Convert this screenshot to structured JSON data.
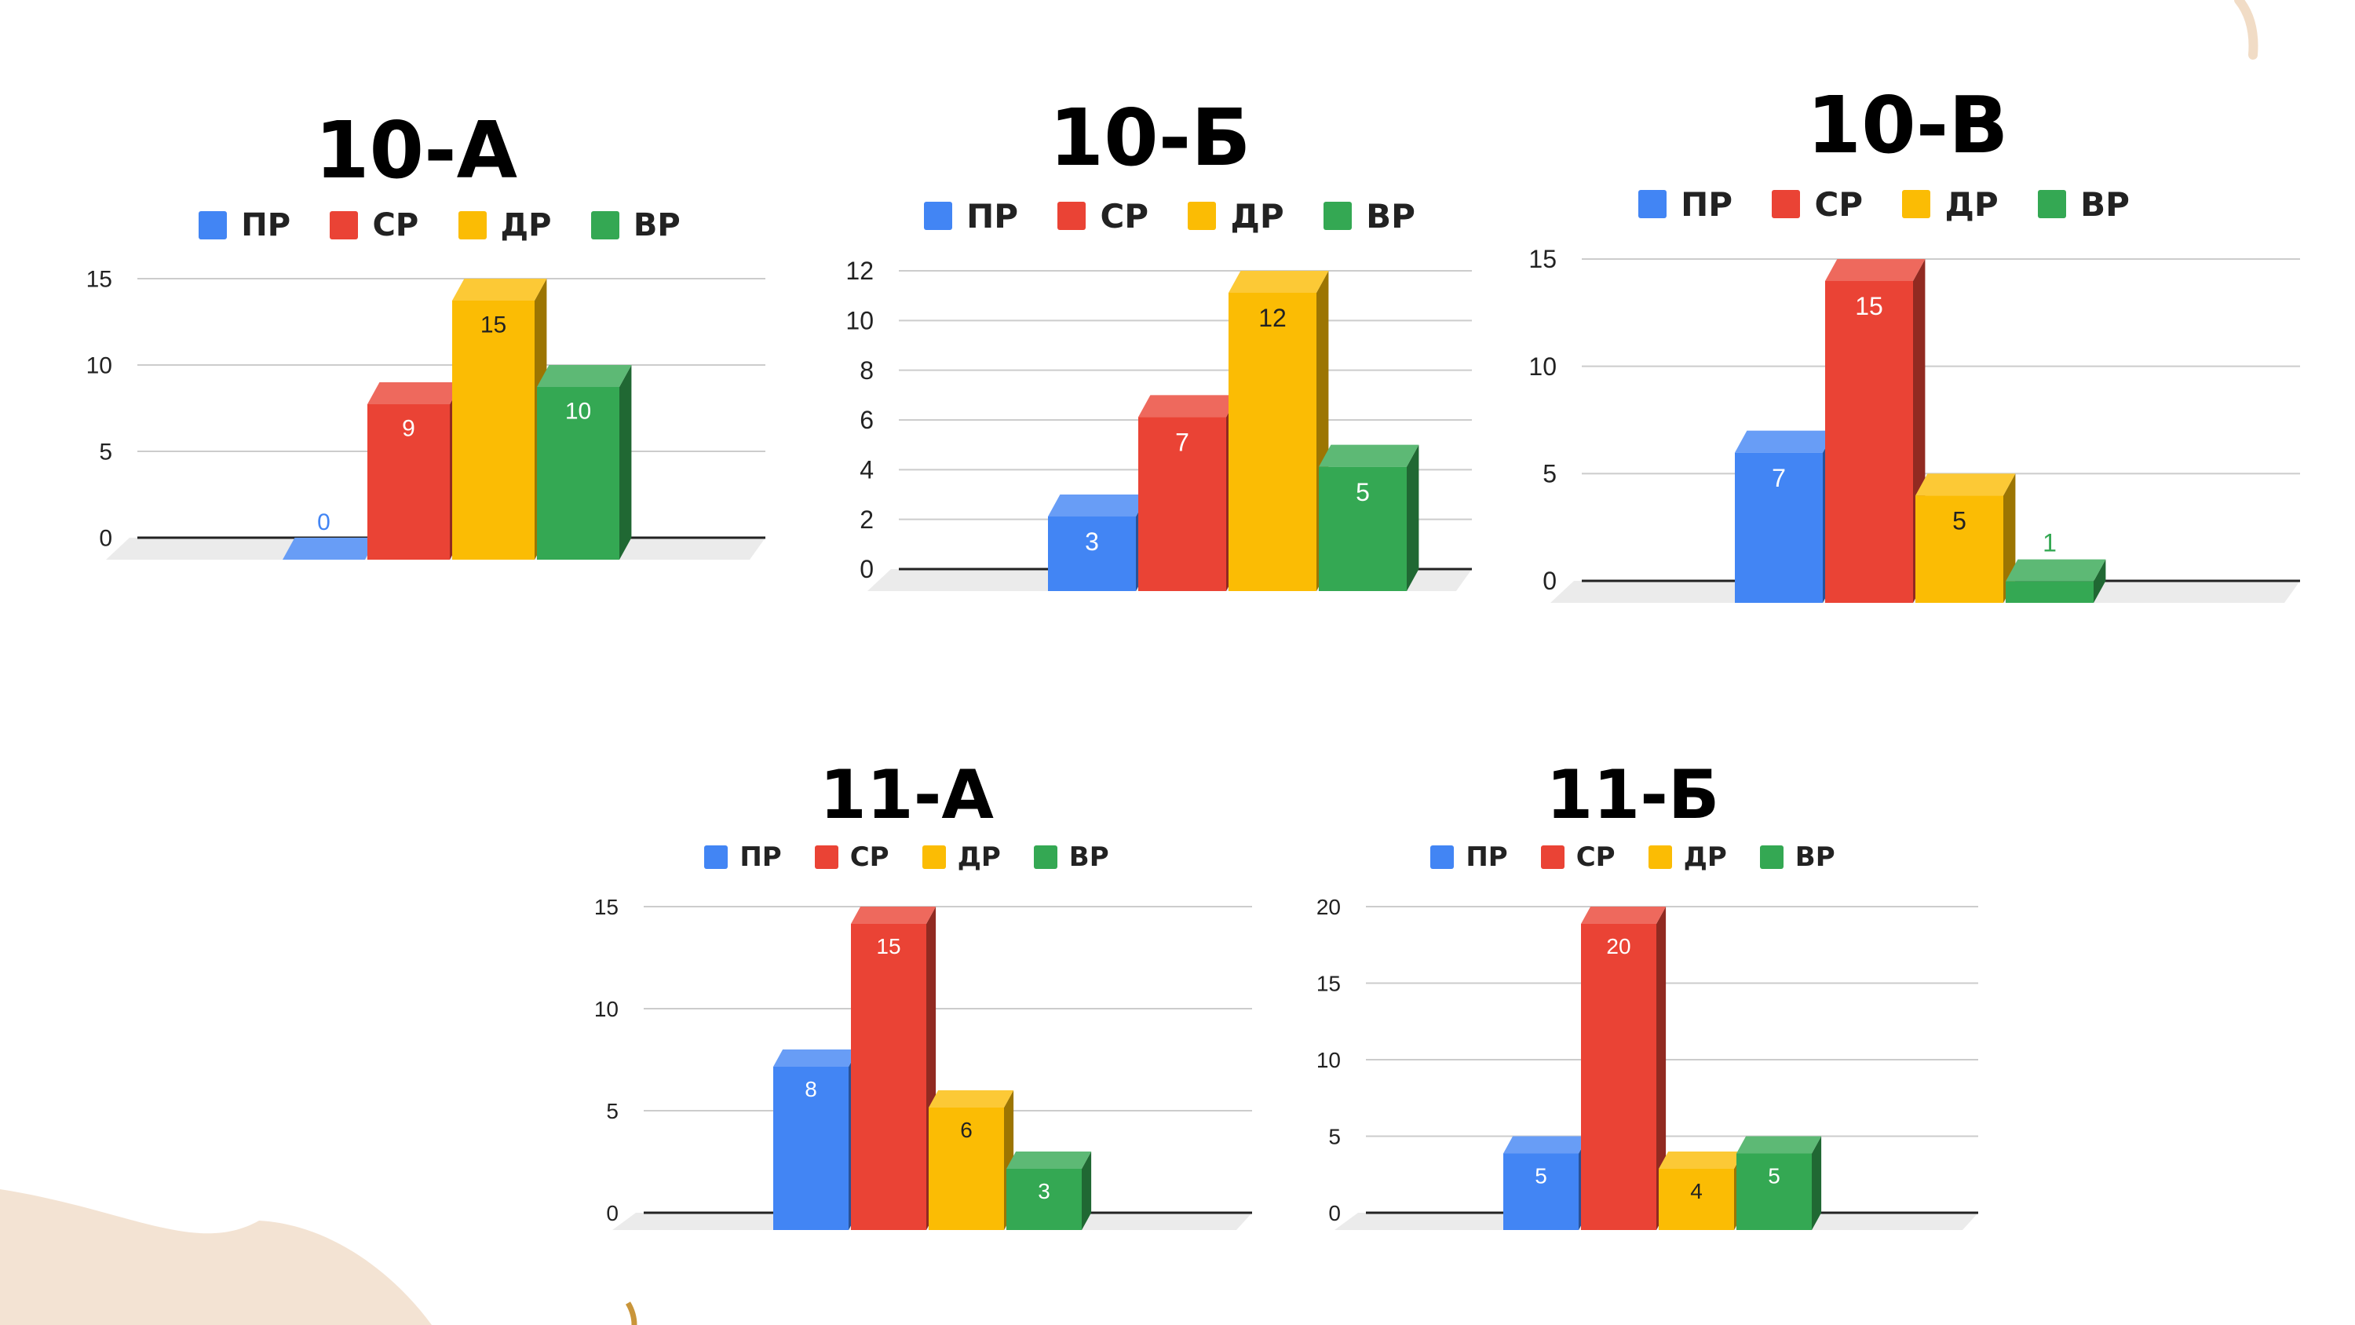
{
  "chart_data": [
    {
      "type": "bar",
      "title": "10-А",
      "categories": [
        "ПР",
        "СР",
        "ДР",
        "ВР"
      ],
      "values": [
        0,
        9,
        15,
        10
      ],
      "ylim": [
        0,
        15
      ],
      "yticks": [
        0,
        5,
        10,
        15
      ],
      "grid": true,
      "legend": "top"
    },
    {
      "type": "bar",
      "title": "10-Б",
      "categories": [
        "ПР",
        "СР",
        "ДР",
        "ВР"
      ],
      "values": [
        3,
        7,
        12,
        5
      ],
      "ylim": [
        0,
        12
      ],
      "yticks": [
        0,
        2,
        4,
        6,
        8,
        10,
        12
      ],
      "grid": true,
      "legend": "top"
    },
    {
      "type": "bar",
      "title": "10-В",
      "categories": [
        "ПР",
        "СР",
        "ДР",
        "ВР"
      ],
      "values": [
        7,
        15,
        5,
        1
      ],
      "ylim": [
        0,
        15
      ],
      "yticks": [
        0,
        5,
        10,
        15
      ],
      "grid": true,
      "legend": "top"
    },
    {
      "type": "bar",
      "title": "11-А",
      "categories": [
        "ПР",
        "СР",
        "ДР",
        "ВР"
      ],
      "values": [
        8,
        15,
        6,
        3
      ],
      "ylim": [
        0,
        15
      ],
      "yticks": [
        0,
        5,
        10,
        15
      ],
      "grid": true,
      "legend": "top"
    },
    {
      "type": "bar",
      "title": "11-Б",
      "categories": [
        "ПР",
        "СР",
        "ДР",
        "ВР"
      ],
      "values": [
        5,
        20,
        4,
        5
      ],
      "ylim": [
        0,
        20
      ],
      "yticks": [
        0,
        5,
        10,
        15,
        20
      ],
      "grid": true,
      "legend": "top"
    }
  ],
  "colors": {
    "ПР": "#4285f4",
    "СР": "#ea4335",
    "ДР": "#fbbc04",
    "ВР": "#34a853"
  }
}
